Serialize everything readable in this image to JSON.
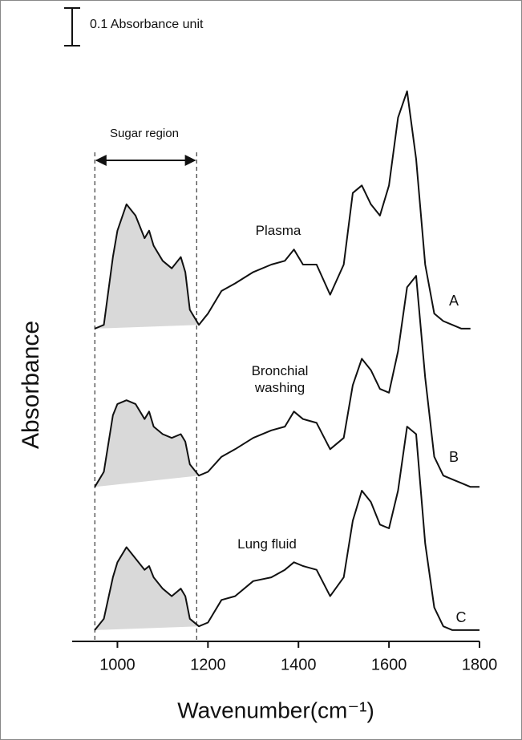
{
  "chart_data": {
    "type": "line",
    "x": [
      950,
      970,
      990,
      1000,
      1020,
      1040,
      1060,
      1070,
      1080,
      1100,
      1120,
      1140,
      1150,
      1160,
      1180,
      1200,
      1230,
      1260,
      1300,
      1340,
      1370,
      1390,
      1410,
      1440,
      1470,
      1500,
      1520,
      1540,
      1560,
      1580,
      1600,
      1620,
      1640,
      1660,
      1680,
      1700,
      1720,
      1740,
      1760,
      1780,
      1800
    ],
    "series": [
      {
        "name": "A",
        "label": "Plasma",
        "color": "#111111",
        "values": [
          0.83,
          0.84,
          1.02,
          1.09,
          1.16,
          1.13,
          1.07,
          1.09,
          1.05,
          1.01,
          0.99,
          1.02,
          0.98,
          0.88,
          0.84,
          0.87,
          0.93,
          0.95,
          0.98,
          1.0,
          1.01,
          1.04,
          1.0,
          1.0,
          0.92,
          1.0,
          1.19,
          1.21,
          1.16,
          1.13,
          1.21,
          1.39,
          1.46,
          1.28,
          1.0,
          0.87,
          0.85,
          0.84,
          0.83,
          0.83,
          null
        ]
      },
      {
        "name": "B",
        "label": "Bronchial washing",
        "color": "#111111",
        "values": [
          0.41,
          0.45,
          0.6,
          0.63,
          0.64,
          0.63,
          0.59,
          0.61,
          0.57,
          0.55,
          0.54,
          0.55,
          0.53,
          0.47,
          0.44,
          0.45,
          0.49,
          0.51,
          0.54,
          0.56,
          0.57,
          0.61,
          0.59,
          0.58,
          0.51,
          0.54,
          0.68,
          0.75,
          0.72,
          0.67,
          0.66,
          0.77,
          0.94,
          0.97,
          0.7,
          0.49,
          0.44,
          0.43,
          0.42,
          0.41,
          0.41
        ]
      },
      {
        "name": "C",
        "label": "Lung fluid",
        "color": "#111111",
        "values": [
          0.03,
          0.06,
          0.17,
          0.21,
          0.25,
          0.22,
          0.19,
          0.2,
          0.17,
          0.14,
          0.12,
          0.14,
          0.12,
          0.06,
          0.04,
          0.05,
          0.11,
          0.12,
          0.16,
          0.17,
          0.19,
          0.21,
          0.2,
          0.19,
          0.12,
          0.17,
          0.32,
          0.4,
          0.37,
          0.31,
          0.3,
          0.4,
          0.57,
          0.55,
          0.26,
          0.09,
          0.04,
          0.03,
          0.03,
          0.03,
          0.03
        ]
      }
    ],
    "xlabel": "Wavenumber(cm⁻¹)",
    "ylabel": "Absorbance",
    "xlim": [
      900,
      1800
    ],
    "xticks": [
      1000,
      1200,
      1400,
      1600,
      1800
    ],
    "ylim": [
      0,
      1.7
    ],
    "sugar_region": {
      "label": "Sugar region",
      "range": [
        950,
        1175
      ],
      "shade": "#d9d9d9"
    },
    "scale_bar": {
      "value": 0.1,
      "label": "0.1 Absorbance unit"
    }
  }
}
